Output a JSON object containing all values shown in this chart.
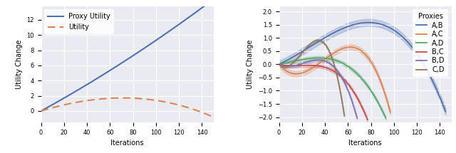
{
  "fig_width": 6.4,
  "fig_height": 2.15,
  "dpi": 100,
  "bg_color": "#eaeaf2",
  "iterations": 150,
  "left_xlabel": "Iterations",
  "left_ylabel": "Utility Change",
  "left_ylim": [
    -1.5,
    13.8
  ],
  "left_xlim": [
    0,
    150
  ],
  "proxy_color": "#4c72b0",
  "utility_color": "#dd8452",
  "right_xlabel": "Iterations",
  "right_ylabel": "Utility Change",
  "right_ylim": [
    -2.2,
    2.2
  ],
  "right_xlim": [
    0,
    150
  ],
  "proxies": {
    "A,B": {
      "color": "#4c72b0",
      "band": 0.13
    },
    "A,C": {
      "color": "#dd8452",
      "band": 0.1
    },
    "A,D": {
      "color": "#55a868",
      "band": 0.07
    },
    "B,C": {
      "color": "#c44e52",
      "band": 0.07
    },
    "B,D": {
      "color": "#8172b2",
      "band": 0.06
    },
    "C,D": {
      "color": "#937860",
      "band": 0.05
    }
  },
  "legend_title": "Proxies",
  "legend_fontsize": 7,
  "axis_fontsize": 7,
  "tick_fontsize": 6,
  "grid_color": "white"
}
